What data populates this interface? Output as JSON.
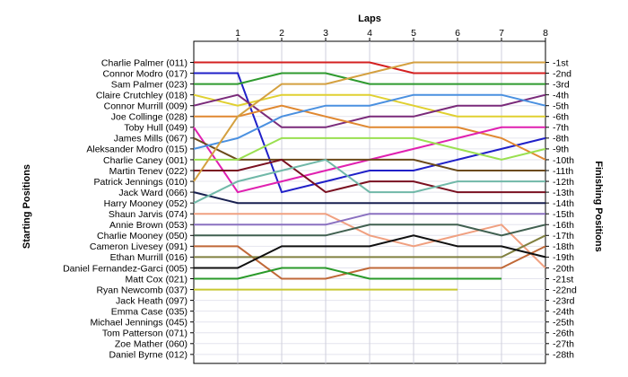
{
  "chart_data": {
    "type": "line",
    "top_axis_label": "Laps",
    "left_axis_label": "Starting Positions",
    "right_axis_label": "Finishing Positions",
    "laps": [
      0,
      1,
      2,
      3,
      4,
      5,
      6,
      7,
      8
    ],
    "lap_tick_labels": [
      "1",
      "2",
      "3",
      "4",
      "5",
      "6",
      "7",
      "8"
    ],
    "grid": true,
    "drivers": [
      "Charlie Palmer (011)",
      "Connor Modro (017)",
      "Sam Palmer (023)",
      "Claire Crutchley (018)",
      "Connor Murrill (009)",
      "Joe Collinge (028)",
      "Toby Hull (049)",
      "James Mills (067)",
      "Aleksander Modro (015)",
      "Charlie Caney (001)",
      "Martin Tenev (022)",
      "Patrick Jennings (010)",
      "Jack Ward (066)",
      "Harry Mooney (052)",
      "Shaun Jarvis (074)",
      "Annie Brown (053)",
      "Charlie Mooney (050)",
      "Cameron Livesey (091)",
      "Ethan Murrill (016)",
      "Daniel Fernandez-Garci (005)",
      "Matt Cox (021)",
      "Ryan Newcomb (037)",
      "Jack Heath (097)",
      "Emma Case (035)",
      "Michael Jennings (045)",
      "Tom Patterson (071)",
      "Zoe Mather (060)",
      "Daniel Byrne (012)"
    ],
    "finishing_labels": [
      "1st",
      "2nd",
      "3rd",
      "4th",
      "5th",
      "6th",
      "7th",
      "8th",
      "9th",
      "10th",
      "11th",
      "12th",
      "13th",
      "14th",
      "15th",
      "16th",
      "17th",
      "18th",
      "19th",
      "20th",
      "21st",
      "22nd",
      "23rd",
      "24th",
      "25th",
      "26th",
      "27th",
      "28th"
    ],
    "series": [
      {
        "color": "#d42020",
        "positions": [
          1,
          1,
          1,
          1,
          1,
          2,
          2,
          2,
          2
        ]
      },
      {
        "color": "#2020c8",
        "positions": [
          2,
          2,
          13,
          12,
          11,
          11,
          10,
          9,
          8
        ]
      },
      {
        "color": "#2f9a2f",
        "positions": [
          3,
          3,
          2,
          2,
          3,
          3,
          3,
          3,
          3
        ]
      },
      {
        "color": "#e0d030",
        "positions": [
          4,
          5,
          4,
          4,
          4,
          5,
          6,
          6,
          6
        ]
      },
      {
        "color": "#7a2a7a",
        "positions": [
          5,
          4,
          7,
          7,
          6,
          6,
          5,
          5,
          4
        ]
      },
      {
        "color": "#e08830",
        "positions": [
          6,
          6,
          5,
          6,
          7,
          7,
          7,
          8,
          10
        ]
      },
      {
        "color": "#e020b0",
        "positions": [
          7,
          13,
          12,
          11,
          10,
          9,
          8,
          7,
          7
        ]
      },
      {
        "color": "#6b4a1a",
        "positions": [
          8,
          10,
          10,
          10,
          10,
          10,
          11,
          11,
          11
        ]
      },
      {
        "color": "#4a90e0",
        "positions": [
          9,
          8,
          6,
          5,
          5,
          4,
          4,
          4,
          5
        ]
      },
      {
        "color": "#9ae050",
        "positions": [
          10,
          10,
          8,
          8,
          8,
          8,
          9,
          10,
          9
        ]
      },
      {
        "color": "#7a1020",
        "positions": [
          11,
          11,
          10,
          13,
          12,
          12,
          13,
          13,
          13
        ]
      },
      {
        "color": "#d4a040",
        "positions": [
          12,
          6,
          3,
          3,
          2,
          1,
          1,
          1,
          1
        ]
      },
      {
        "color": "#182050",
        "positions": [
          13,
          14,
          14,
          14,
          14,
          14,
          14,
          14,
          14
        ]
      },
      {
        "color": "#70b8a8",
        "positions": [
          14,
          12,
          11,
          10,
          13,
          13,
          12,
          12,
          12
        ]
      },
      {
        "color": "#f0a080",
        "positions": [
          15,
          15,
          15,
          15,
          17,
          18,
          17,
          16,
          20
        ]
      },
      {
        "color": "#8a70c0",
        "positions": [
          16,
          16,
          16,
          16,
          15,
          15,
          15,
          15,
          15
        ]
      },
      {
        "color": "#406050",
        "positions": [
          17,
          17,
          17,
          17,
          16,
          16,
          16,
          17,
          16
        ]
      },
      {
        "color": "#c06838",
        "positions": [
          18,
          18,
          21,
          21,
          20,
          20,
          20,
          20,
          18
        ]
      },
      {
        "color": "#808040",
        "positions": [
          19,
          19,
          19,
          19,
          19,
          19,
          19,
          19,
          17
        ]
      },
      {
        "color": "#101010",
        "positions": [
          20,
          20,
          18,
          18,
          18,
          17,
          18,
          18,
          19
        ]
      },
      {
        "color": "#2a9a2a",
        "positions": [
          21,
          21,
          20,
          20,
          21,
          21,
          21,
          21
        ]
      },
      {
        "color": "#c8c830",
        "positions": [
          22,
          22,
          22,
          22,
          22,
          22,
          22
        ]
      }
    ]
  }
}
